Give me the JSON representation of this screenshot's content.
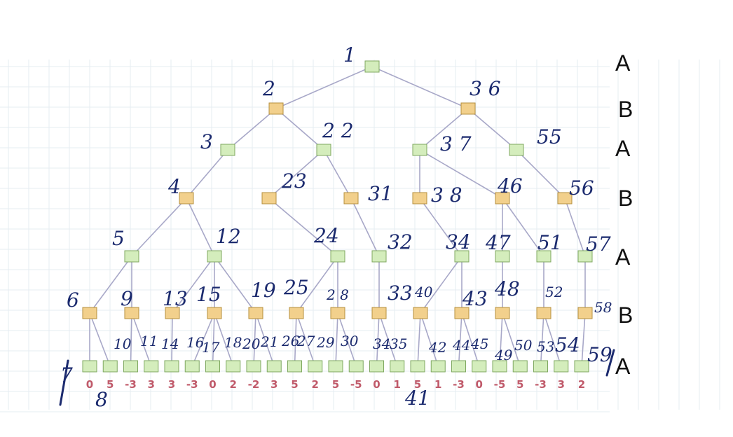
{
  "level_labels": [
    "A",
    "B",
    "A",
    "B",
    "A",
    "B",
    "A"
  ],
  "leaf_values": [
    "0",
    "5",
    "-3",
    "3",
    "3",
    "-3",
    "0",
    "2",
    "-2",
    "3",
    "5",
    "2",
    "5",
    "-5",
    "0",
    "1",
    "5",
    "1",
    "-3",
    "0",
    "-5",
    "5",
    "-3",
    "3",
    "2"
  ],
  "annotations": {
    "n1": "1",
    "n2": "2",
    "n36": "3 6",
    "n3": "3",
    "n22": "2 2",
    "n37": "3 7",
    "n55": "55",
    "n4": "4",
    "n23": "23",
    "n31": "31",
    "n38": "3 8",
    "n46": "46",
    "n56": "56",
    "n5": "5",
    "n12": "12",
    "n24": "24",
    "n32": "32",
    "n34": "34",
    "n47": "47",
    "n51": "51",
    "n57": "57",
    "n6": "6",
    "n9": "9",
    "n13": "13",
    "n15": "15",
    "n19": "19",
    "n25": "25",
    "n28": "2 8",
    "n33": "33",
    "n40": "40",
    "n43": "43",
    "n48": "48",
    "n52": "52",
    "n58": "58",
    "r10": "10",
    "r11": "11",
    "r14": "14",
    "r16": "16",
    "r17": "17",
    "r18": "18",
    "r20": "20",
    "r21": "21",
    "r26": "26",
    "r27": "27",
    "r29": "29",
    "r30": "30",
    "r34b": "34",
    "r35": "35",
    "r42": "42",
    "r44": "44",
    "r45": "45",
    "r49": "49",
    "r50": "50",
    "r53": "53",
    "r54": "54",
    "r59": "59",
    "b7": "7",
    "b8": "8",
    "b41": "41"
  }
}
